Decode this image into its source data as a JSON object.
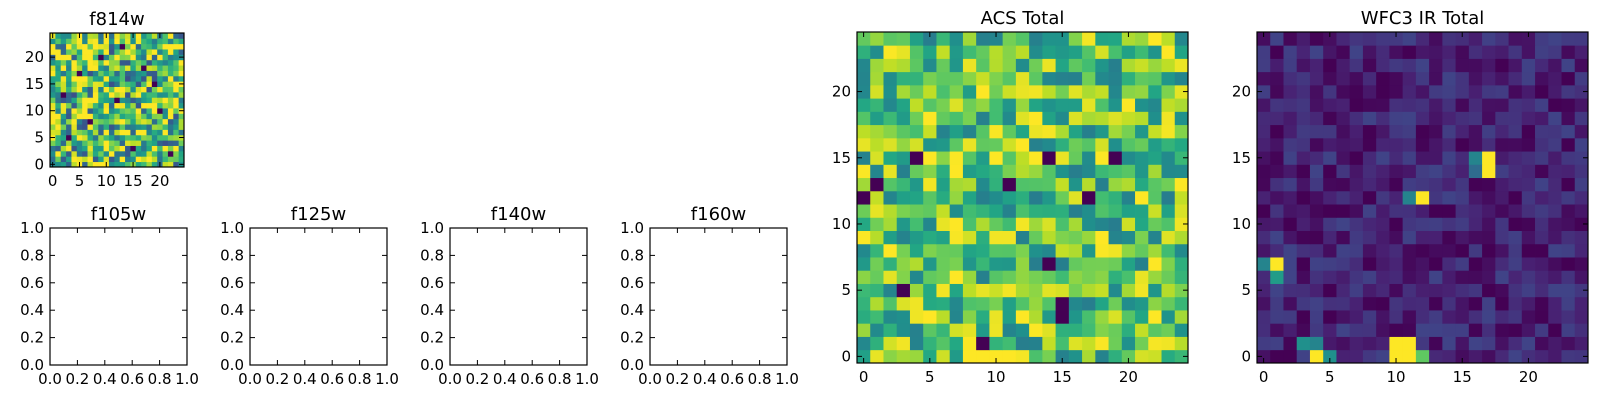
{
  "figure": {
    "colormap": "viridis",
    "colors": {
      "low": "#440154",
      "mid": "#21918c",
      "high": "#fde725"
    }
  },
  "chart_data": [
    {
      "id": "f814w",
      "type": "heatmap",
      "title": "f814w",
      "size": 25,
      "xlim": [
        -0.5,
        24.5
      ],
      "ylim": [
        -0.5,
        24.5
      ],
      "xticks": [
        0,
        5,
        10,
        15,
        20
      ],
      "yticks": [
        0,
        5,
        10,
        15,
        20
      ],
      "xtick_labels": [
        "0",
        "5",
        "10",
        "15",
        "20"
      ],
      "ytick_labels": [
        "0",
        "5",
        "10",
        "15",
        "20"
      ],
      "pattern": "noise",
      "seed": 11,
      "center": 0.7,
      "spread": 0.45,
      "low_spots": [
        [
          3,
          5
        ],
        [
          7,
          8
        ],
        [
          12,
          12
        ],
        [
          19,
          15
        ],
        [
          22,
          2
        ],
        [
          9,
          20
        ],
        [
          15,
          3
        ],
        [
          5,
          17
        ],
        [
          20,
          10
        ],
        [
          13,
          22
        ],
        [
          17,
          18
        ],
        [
          2,
          13
        ]
      ],
      "high_spots": [
        [
          8,
          0
        ],
        [
          9,
          0
        ],
        [
          10,
          0
        ],
        [
          23,
          22
        ],
        [
          1,
          2
        ],
        [
          14,
          6
        ],
        [
          18,
          11
        ]
      ]
    },
    {
      "id": "f105w",
      "type": "empty",
      "title": "f105w",
      "xlim": [
        0,
        1
      ],
      "ylim": [
        0,
        1
      ],
      "xtick_labels": [
        "0.0",
        "0.2",
        "0.4",
        "0.6",
        "0.8",
        "1.0"
      ],
      "ytick_labels": [
        "0.0",
        "0.2",
        "0.4",
        "0.6",
        "0.8",
        "1.0"
      ]
    },
    {
      "id": "f125w",
      "type": "empty",
      "title": "f125w",
      "xlim": [
        0,
        1
      ],
      "ylim": [
        0,
        1
      ],
      "xtick_labels": [
        "0.0",
        "0.2",
        "0.4",
        "0.6",
        "0.8",
        "1.0"
      ],
      "ytick_labels": [
        "0.0",
        "0.2",
        "0.4",
        "0.6",
        "0.8",
        "1.0"
      ]
    },
    {
      "id": "f140w",
      "type": "empty",
      "title": "f140w",
      "xlim": [
        0,
        1
      ],
      "ylim": [
        0,
        1
      ],
      "xtick_labels": [
        "0.0",
        "0.2",
        "0.4",
        "0.6",
        "0.8",
        "1.0"
      ],
      "ytick_labels": [
        "0.0",
        "0.2",
        "0.4",
        "0.6",
        "0.8",
        "1.0"
      ]
    },
    {
      "id": "f160w",
      "type": "empty",
      "title": "f160w",
      "xlim": [
        0,
        1
      ],
      "ylim": [
        0,
        1
      ],
      "xtick_labels": [
        "0.0",
        "0.2",
        "0.4",
        "0.6",
        "0.8",
        "1.0"
      ],
      "ytick_labels": [
        "0.0",
        "0.2",
        "0.4",
        "0.6",
        "0.8",
        "1.0"
      ]
    },
    {
      "id": "acs_total",
      "type": "heatmap",
      "title": "ACS Total",
      "size": 25,
      "xlim": [
        -0.5,
        24.5
      ],
      "ylim": [
        -0.5,
        24.5
      ],
      "xticks": [
        0,
        5,
        10,
        15,
        20
      ],
      "yticks": [
        0,
        5,
        10,
        15,
        20
      ],
      "xtick_labels": [
        "0",
        "5",
        "10",
        "15",
        "20"
      ],
      "ytick_labels": [
        "0",
        "5",
        "10",
        "15",
        "20"
      ],
      "pattern": "noise",
      "seed": 29,
      "center": 0.72,
      "spread": 0.3,
      "low_spots": [
        [
          4,
          15
        ],
        [
          11,
          13
        ],
        [
          14,
          15
        ],
        [
          19,
          15
        ],
        [
          0,
          12
        ],
        [
          14,
          7
        ],
        [
          15,
          4
        ],
        [
          15,
          3
        ],
        [
          9,
          1
        ],
        [
          1,
          13
        ],
        [
          3,
          5
        ],
        [
          17,
          12
        ]
      ],
      "high_spots": [
        [
          7,
          6
        ],
        [
          8,
          0
        ],
        [
          9,
          0
        ],
        [
          10,
          0
        ],
        [
          11,
          0
        ],
        [
          22,
          3
        ],
        [
          20,
          19
        ],
        [
          12,
          16
        ],
        [
          13,
          18
        ],
        [
          22,
          24
        ],
        [
          23,
          23
        ]
      ]
    },
    {
      "id": "wfc3_ir_total",
      "type": "heatmap",
      "title": "WFC3 IR Total",
      "size": 25,
      "xlim": [
        -0.5,
        24.5
      ],
      "ylim": [
        -0.5,
        24.5
      ],
      "xticks": [
        0,
        5,
        10,
        15,
        20
      ],
      "yticks": [
        0,
        5,
        10,
        15,
        20
      ],
      "xtick_labels": [
        "0",
        "5",
        "10",
        "15",
        "20"
      ],
      "ytick_labels": [
        "0",
        "5",
        "10",
        "15",
        "20"
      ],
      "pattern": "sparse",
      "seed": 7,
      "center": 0.1,
      "spread": 0.1,
      "cells": [
        [
          17,
          14,
          1.0
        ],
        [
          17,
          15,
          1.0
        ],
        [
          16,
          15,
          0.45
        ],
        [
          16,
          14,
          0.35
        ],
        [
          12,
          12,
          1.0
        ],
        [
          11,
          12,
          0.45
        ],
        [
          10,
          1,
          1.0
        ],
        [
          11,
          1,
          1.0
        ],
        [
          10,
          0,
          1.0
        ],
        [
          11,
          0,
          1.0
        ],
        [
          12,
          0,
          0.75
        ],
        [
          4,
          0,
          1.0
        ],
        [
          5,
          0,
          0.5
        ],
        [
          3,
          1,
          0.5
        ],
        [
          4,
          1,
          0.45
        ],
        [
          1,
          7,
          1.0
        ],
        [
          1,
          6,
          0.55
        ],
        [
          0,
          7,
          0.45
        ]
      ]
    }
  ]
}
